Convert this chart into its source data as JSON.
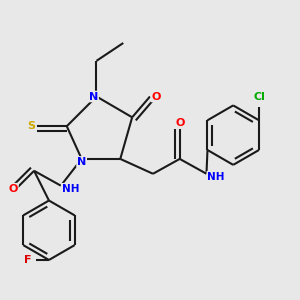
{
  "bg_color": "#e8e8e8",
  "bond_color": "#1a1a1a",
  "bond_width": 1.5,
  "atom_colors": {
    "N": "#0000ff",
    "O": "#ff0000",
    "S": "#ccaa00",
    "F": "#dd0000",
    "Cl": "#00aa00",
    "C": "#1a1a1a"
  },
  "fig_size": [
    3.0,
    3.0
  ],
  "dpi": 100
}
